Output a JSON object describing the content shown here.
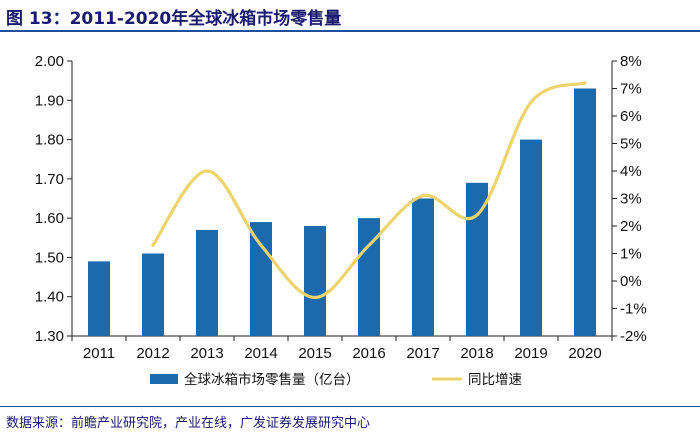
{
  "title": "图 13：2011-2020年全球冰箱市场零售量",
  "source": "数据来源：前瞻产业研究院，产业在线，广发证券发展研究中心",
  "colors": {
    "bar": "#1a6aad",
    "line": "#ecd36c",
    "title": "#1a1a6e",
    "rule": "#1f4e9c"
  },
  "chart_data": {
    "type": "bar+line",
    "categories": [
      "2011",
      "2012",
      "2013",
      "2014",
      "2015",
      "2016",
      "2017",
      "2018",
      "2019",
      "2020"
    ],
    "series": [
      {
        "name": "全球冰箱市场零售量（亿台）",
        "type": "bar",
        "axis": "left",
        "values": [
          1.49,
          1.51,
          1.57,
          1.59,
          1.58,
          1.6,
          1.65,
          1.69,
          1.8,
          1.93
        ]
      },
      {
        "name": "同比增速",
        "type": "line",
        "axis": "right",
        "unit": "%",
        "values": [
          null,
          1.3,
          4.0,
          1.3,
          -0.6,
          1.3,
          3.1,
          2.4,
          6.5,
          7.2
        ]
      }
    ],
    "yleft": {
      "lim": [
        1.3,
        2.0
      ],
      "ticks": [
        "1.30",
        "1.40",
        "1.50",
        "1.60",
        "1.70",
        "1.80",
        "1.90",
        "2.00"
      ]
    },
    "yright": {
      "lim": [
        -2,
        8
      ],
      "ticks": [
        "-2%",
        "-1%",
        "0%",
        "1%",
        "2%",
        "3%",
        "4%",
        "5%",
        "6%",
        "7%",
        "8%"
      ]
    },
    "legend": [
      "全球冰箱市场零售量（亿台）",
      "同比增速"
    ]
  }
}
